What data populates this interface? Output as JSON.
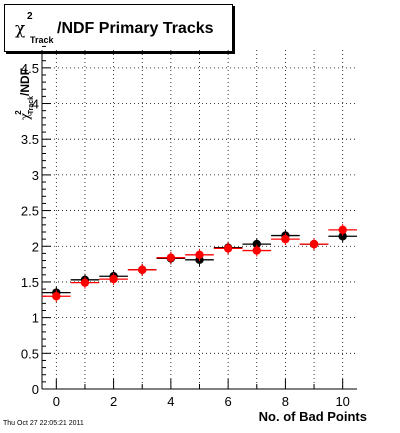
{
  "chart_data": {
    "type": "scatter",
    "title": {
      "chi": "χ",
      "sup": "2",
      "sub": "Track",
      "rest": "/NDF Primary Tracks"
    },
    "ylabel": {
      "chi": "χ",
      "sup": "2",
      "sub": "Track",
      "rest": "/NDF"
    },
    "xlabel": "No. of Bad Points",
    "xlim": [
      -0.5,
      10.5
    ],
    "ylim": [
      0,
      4.75
    ],
    "xticks": [
      0,
      2,
      4,
      6,
      8,
      10
    ],
    "xtick_labels": [
      "0",
      "2",
      "4",
      "6",
      "8",
      "10"
    ],
    "yticks": [
      0,
      0.5,
      1,
      1.5,
      2,
      2.5,
      3,
      3.5,
      4,
      4.5
    ],
    "ytick_labels": [
      "0",
      "0.5",
      "1",
      "1.5",
      "2",
      "2.5",
      "3",
      "3.5",
      "4",
      "4.5"
    ],
    "grid": true,
    "series": [
      {
        "color": "#000000",
        "x": [
          0,
          1,
          2,
          3,
          4,
          5,
          6,
          7,
          8,
          9,
          10
        ],
        "y": [
          1.35,
          1.53,
          1.58,
          1.67,
          1.83,
          1.81,
          1.98,
          2.03,
          2.15,
          2.03,
          2.14
        ]
      },
      {
        "color": "#ff0000",
        "x": [
          0,
          1,
          2,
          3,
          4,
          5,
          6,
          7,
          8,
          9,
          10
        ],
        "y": [
          1.3,
          1.49,
          1.54,
          1.67,
          1.84,
          1.88,
          1.97,
          1.94,
          2.1,
          2.03,
          2.23
        ]
      }
    ]
  },
  "timestamp": "Thu Oct 27 22:05:21 2011"
}
